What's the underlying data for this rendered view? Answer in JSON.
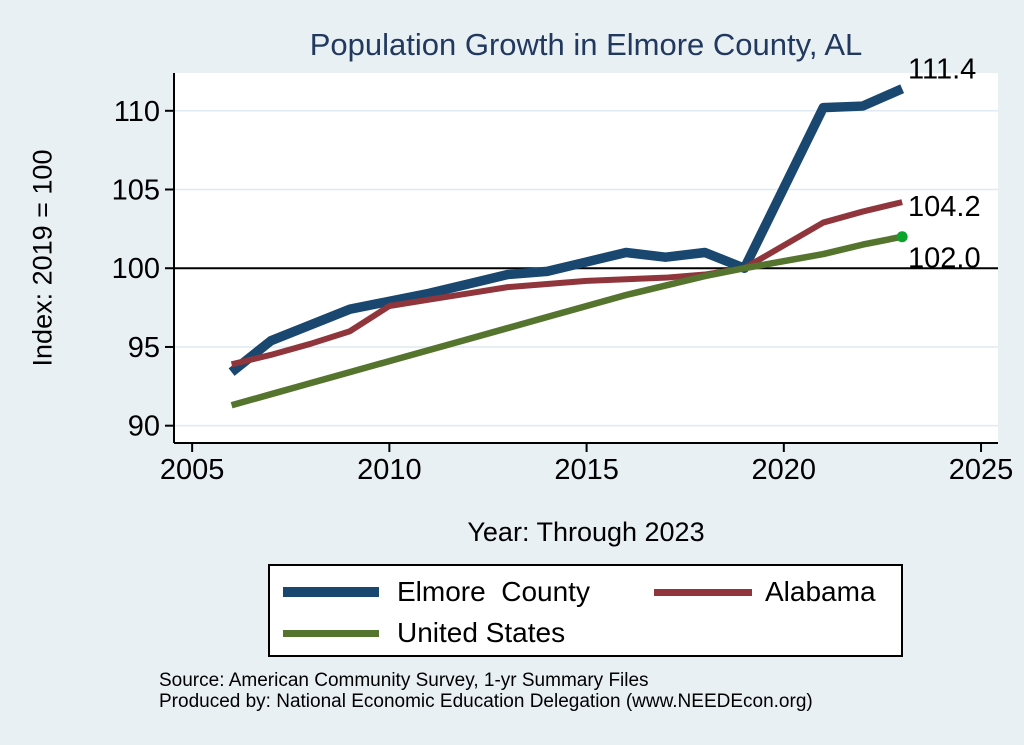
{
  "title": "Population Growth in Elmore County, AL",
  "y_axis_title": "Index: 2019 = 100",
  "x_axis_title": "Year: Through 2023",
  "source": {
    "line1": "Source: American Community Survey, 1-yr Summary Files",
    "line2": "Produced by: National Economic Education Delegation (www.NEEDEcon.org)"
  },
  "colors": {
    "background": "#e9f0f4",
    "plot_bg": "#ffffff",
    "grid": "#dfeaf2",
    "axis": "#000000",
    "reference_line": "#000000",
    "title_text": "#21395f",
    "elmore": "#1a476f",
    "alabama": "#90353b",
    "us": "#55752f",
    "us_end_marker": "#0aa32b"
  },
  "legend": {
    "items": [
      {
        "label": "Elmore  County",
        "color_key": "elmore"
      },
      {
        "label": "Alabama",
        "color_key": "alabama"
      },
      {
        "label": "United States",
        "color_key": "us"
      }
    ]
  },
  "chart_data": {
    "type": "line",
    "title": "Population Growth in Elmore County, AL",
    "xlabel": "Year: Through 2023",
    "ylabel": "Index: 2019 = 100",
    "x": [
      2006,
      2007,
      2008,
      2009,
      2010,
      2011,
      2012,
      2013,
      2014,
      2015,
      2016,
      2017,
      2018,
      2019,
      2021,
      2022,
      2023
    ],
    "series": [
      {
        "name": "Elmore County",
        "color_key": "elmore",
        "values": [
          93.4,
          95.4,
          96.4,
          97.4,
          97.9,
          98.4,
          99.0,
          99.6,
          99.8,
          100.4,
          101.0,
          100.7,
          101.0,
          100.0,
          110.2,
          110.3,
          111.4
        ],
        "end_label": "111.4",
        "end_marker": false
      },
      {
        "name": "Alabama",
        "color_key": "alabama",
        "values": [
          93.9,
          94.5,
          95.2,
          96.0,
          97.6,
          98.0,
          98.4,
          98.8,
          99.0,
          99.2,
          99.3,
          99.4,
          99.6,
          100.0,
          102.9,
          103.6,
          104.2
        ],
        "end_label": "104.2",
        "end_marker": false
      },
      {
        "name": "United States",
        "color_key": "us",
        "values": [
          91.3,
          92.0,
          92.7,
          93.4,
          94.1,
          94.8,
          95.5,
          96.2,
          96.9,
          97.6,
          98.3,
          98.9,
          99.5,
          100.0,
          100.9,
          101.5,
          102.0
        ],
        "end_label": "102.0",
        "end_marker": true
      }
    ],
    "x_ticks": [
      2005,
      2010,
      2015,
      2020,
      2025
    ],
    "y_ticks": [
      90,
      95,
      100,
      105,
      110
    ],
    "x_range": [
      2004.54,
      2025.43
    ],
    "y_range": [
      88.9,
      112.4
    ],
    "reference_line_y": 100,
    "grid": "horizontal-only",
    "legend_position": "bottom",
    "missing_years_note": "no data point for 2020"
  }
}
